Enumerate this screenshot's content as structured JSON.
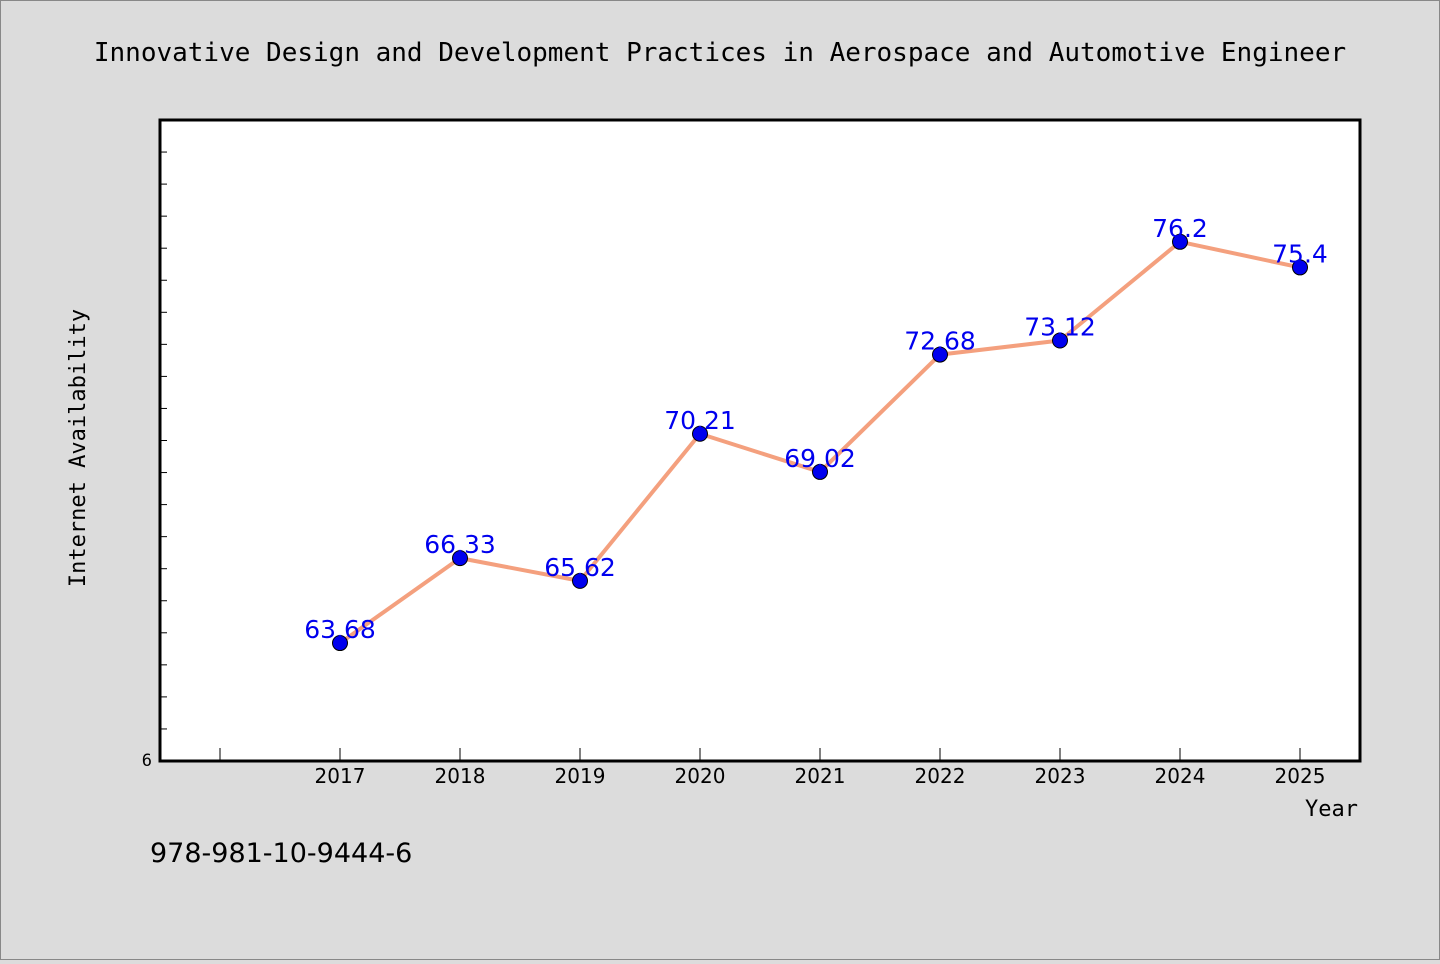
{
  "chart_data": {
    "type": "line",
    "title": "Innovative Design and Development Practices in Aerospace and Automotive Engineer",
    "xlabel": "Year",
    "ylabel": "Internet Availability",
    "categories": [
      "2017",
      "2018",
      "2019",
      "2020",
      "2021",
      "2022",
      "2023",
      "2024",
      "2025"
    ],
    "series": [
      {
        "values": [
          63.68,
          66.33,
          65.62,
          70.21,
          69.02,
          72.68,
          73.12,
          76.2,
          75.4
        ]
      }
    ],
    "data_labels": [
      "63.68",
      "66.33",
      "65.62",
      "70.21",
      "69.02",
      "72.68",
      "73.12",
      "76.2",
      "75.4"
    ],
    "y_tick_label": "6",
    "ylim": [
      60,
      80
    ],
    "grid": false,
    "line_color": "#f4a07e",
    "marker_color": "#0000ee",
    "label_color": "#0000ee"
  },
  "footer": {
    "isbn": "978-981-10-9444-6"
  }
}
